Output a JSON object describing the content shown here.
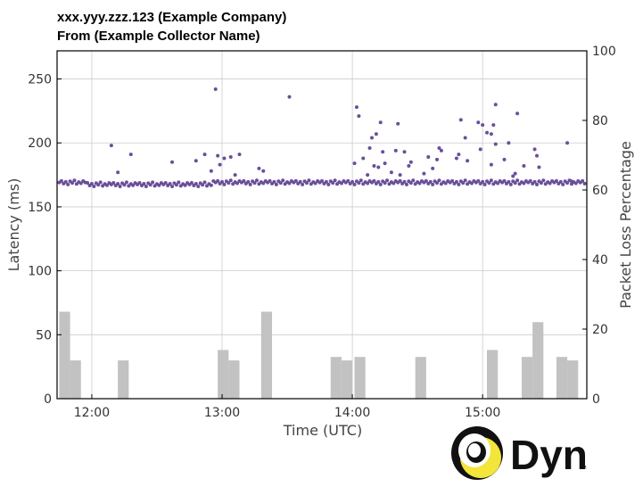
{
  "header": {
    "title": "xxx.yyy.zzz.123 (Example Company)",
    "subtitle": "From (Example Collector Name)"
  },
  "logo": {
    "text": "Dyn",
    "mark": "SM"
  },
  "colors": {
    "points": "#6a4f9a",
    "bars": "#c2c2c2",
    "grid": "#cccccc",
    "logo_yellow": "#f3e53a",
    "logo_black": "#111111"
  },
  "chart_data": {
    "type": "scatter+bar",
    "title": "",
    "xlabel": "Time (UTC)",
    "ylabel_left": "Latency (ms)",
    "ylabel_right": "Packet Loss Percentage",
    "x_range_minutes": [
      "11:44",
      "15:48"
    ],
    "x_ticks": [
      "12:00",
      "13:00",
      "14:00",
      "15:00"
    ],
    "y_left_ticks": [
      "0",
      "50",
      "100",
      "150",
      "200",
      "250"
    ],
    "y_left_range": [
      0,
      272
    ],
    "y_right_ticks": [
      "0",
      "20",
      "40",
      "60",
      "80",
      "100"
    ],
    "y_right_range": [
      0,
      100
    ],
    "grid": true,
    "latency_baseline_ms": 169,
    "latency_outliers": [
      {
        "t": "12:09",
        "ms": 198
      },
      {
        "t": "12:12",
        "ms": 177
      },
      {
        "t": "12:18",
        "ms": 191
      },
      {
        "t": "12:37",
        "ms": 185
      },
      {
        "t": "12:48",
        "ms": 186
      },
      {
        "t": "12:52",
        "ms": 191
      },
      {
        "t": "12:55",
        "ms": 178
      },
      {
        "t": "12:57",
        "ms": 242
      },
      {
        "t": "12:58",
        "ms": 190
      },
      {
        "t": "12:59",
        "ms": 183
      },
      {
        "t": "13:01",
        "ms": 188
      },
      {
        "t": "13:04",
        "ms": 189
      },
      {
        "t": "13:06",
        "ms": 175
      },
      {
        "t": "13:08",
        "ms": 191
      },
      {
        "t": "13:17",
        "ms": 180
      },
      {
        "t": "13:19",
        "ms": 178
      },
      {
        "t": "13:31",
        "ms": 236
      },
      {
        "t": "14:01",
        "ms": 184
      },
      {
        "t": "14:02",
        "ms": 228
      },
      {
        "t": "14:03",
        "ms": 221
      },
      {
        "t": "14:05",
        "ms": 188
      },
      {
        "t": "14:07",
        "ms": 175
      },
      {
        "t": "14:08",
        "ms": 196
      },
      {
        "t": "14:09",
        "ms": 204
      },
      {
        "t": "14:10",
        "ms": 182
      },
      {
        "t": "14:11",
        "ms": 207
      },
      {
        "t": "14:12",
        "ms": 181
      },
      {
        "t": "14:13",
        "ms": 216
      },
      {
        "t": "14:14",
        "ms": 193
      },
      {
        "t": "14:15",
        "ms": 184
      },
      {
        "t": "14:18",
        "ms": 177
      },
      {
        "t": "14:20",
        "ms": 194
      },
      {
        "t": "14:21",
        "ms": 215
      },
      {
        "t": "14:22",
        "ms": 175
      },
      {
        "t": "14:24",
        "ms": 193
      },
      {
        "t": "14:26",
        "ms": 182
      },
      {
        "t": "14:27",
        "ms": 185
      },
      {
        "t": "14:33",
        "ms": 176
      },
      {
        "t": "14:35",
        "ms": 189
      },
      {
        "t": "14:37",
        "ms": 180
      },
      {
        "t": "14:39",
        "ms": 187
      },
      {
        "t": "14:40",
        "ms": 196
      },
      {
        "t": "14:41",
        "ms": 194
      },
      {
        "t": "14:48",
        "ms": 188
      },
      {
        "t": "14:49",
        "ms": 191
      },
      {
        "t": "14:50",
        "ms": 218
      },
      {
        "t": "14:52",
        "ms": 204
      },
      {
        "t": "14:53",
        "ms": 186
      },
      {
        "t": "14:58",
        "ms": 216
      },
      {
        "t": "14:59",
        "ms": 195
      },
      {
        "t": "15:00",
        "ms": 214
      },
      {
        "t": "15:02",
        "ms": 208
      },
      {
        "t": "15:04",
        "ms": 183
      },
      {
        "t": "15:04",
        "ms": 207
      },
      {
        "t": "15:05",
        "ms": 214
      },
      {
        "t": "15:06",
        "ms": 199
      },
      {
        "t": "15:06",
        "ms": 230
      },
      {
        "t": "15:10",
        "ms": 187
      },
      {
        "t": "15:12",
        "ms": 200
      },
      {
        "t": "15:14",
        "ms": 174
      },
      {
        "t": "15:15",
        "ms": 176
      },
      {
        "t": "15:16",
        "ms": 223
      },
      {
        "t": "15:19",
        "ms": 182
      },
      {
        "t": "15:24",
        "ms": 195
      },
      {
        "t": "15:25",
        "ms": 190
      },
      {
        "t": "15:26",
        "ms": 181
      },
      {
        "t": "15:39",
        "ms": 200
      },
      {
        "t": "15:41",
        "ms": 170
      }
    ],
    "packet_loss_bars": [
      {
        "t": "11:45",
        "pct": 25
      },
      {
        "t": "11:50",
        "pct": 11
      },
      {
        "t": "12:12",
        "pct": 11
      },
      {
        "t": "12:58",
        "pct": 14
      },
      {
        "t": "13:03",
        "pct": 11
      },
      {
        "t": "13:18",
        "pct": 25
      },
      {
        "t": "13:50",
        "pct": 12
      },
      {
        "t": "13:55",
        "pct": 11
      },
      {
        "t": "14:01",
        "pct": 12
      },
      {
        "t": "14:29",
        "pct": 12
      },
      {
        "t": "15:02",
        "pct": 14
      },
      {
        "t": "15:18",
        "pct": 12
      },
      {
        "t": "15:23",
        "pct": 22
      },
      {
        "t": "15:34",
        "pct": 12
      },
      {
        "t": "15:39",
        "pct": 11
      }
    ]
  }
}
